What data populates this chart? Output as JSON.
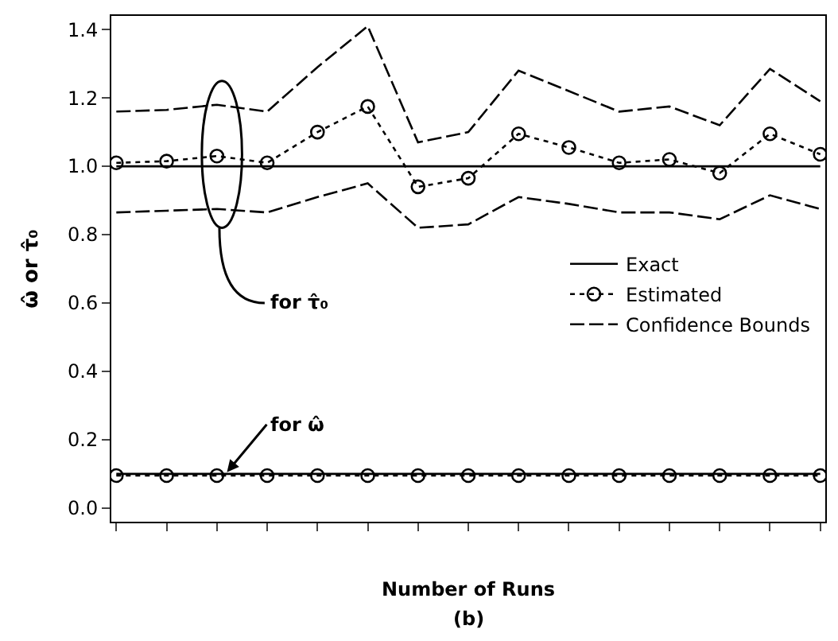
{
  "chart_data": {
    "type": "line",
    "xlabel": "Number of Runs",
    "ylabel": "ω̂ or τ̂₀",
    "categories": [
      null,
      null,
      null,
      null,
      null,
      null,
      null,
      null,
      null,
      null,
      null,
      null,
      null,
      null,
      null
    ],
    "series": [
      {
        "name": "Exact",
        "color": "#000000",
        "line_style": "solid",
        "marker": "none",
        "values": [
          1.0,
          1.0,
          1.0,
          1.0,
          1.0,
          1.0,
          1.0,
          1.0,
          1.0,
          1.0,
          1.0,
          1.0,
          1.0,
          1.0,
          1.0
        ]
      },
      {
        "name": "Estimated",
        "color": "#000000",
        "line_style": "dotted",
        "marker": "circle",
        "values": [
          1.01,
          1.015,
          1.03,
          1.01,
          1.1,
          1.175,
          0.94,
          0.965,
          1.095,
          1.055,
          1.01,
          1.02,
          0.98,
          1.095,
          1.035
        ]
      },
      {
        "name": "Confidence Bounds",
        "color": "#000000",
        "line_style": "dashed",
        "marker": "none",
        "values": [
          1.16,
          1.165,
          1.18,
          1.16,
          1.29,
          1.41,
          1.07,
          1.1,
          1.28,
          1.22,
          1.16,
          1.175,
          1.12,
          1.285,
          1.19
        ]
      },
      {
        "color": "#000000",
        "line_style": "dashed",
        "marker": "none",
        "values": [
          0.865,
          0.87,
          0.875,
          0.865,
          0.91,
          0.95,
          0.82,
          0.83,
          0.91,
          0.89,
          0.865,
          0.865,
          0.845,
          0.915,
          0.875
        ]
      },
      {
        "color": "#000000",
        "line_style": "solid",
        "marker": "none",
        "values": [
          0.1,
          0.1,
          0.1,
          0.1,
          0.1,
          0.1,
          0.1,
          0.1,
          0.1,
          0.1,
          0.1,
          0.1,
          0.1,
          0.1,
          0.1
        ]
      },
      {
        "color": "#000000",
        "line_style": "dotted",
        "marker": "circle",
        "values": [
          0.095,
          0.095,
          0.095,
          0.095,
          0.095,
          0.095,
          0.095,
          0.095,
          0.095,
          0.095,
          0.095,
          0.095,
          0.095,
          0.095,
          0.095
        ]
      }
    ],
    "ylim": [
      -0.04,
      1.44
    ],
    "yticks": [
      {
        "value": 0.0,
        "label": "0.0"
      },
      0.2,
      0.4,
      0.6,
      0.8,
      {
        "value": 1.0,
        "label": "1.0"
      },
      1.2,
      1.4
    ],
    "legend": "right",
    "annotations": [
      "for τ̂₀",
      "for ω̂",
      "(b)"
    ]
  }
}
